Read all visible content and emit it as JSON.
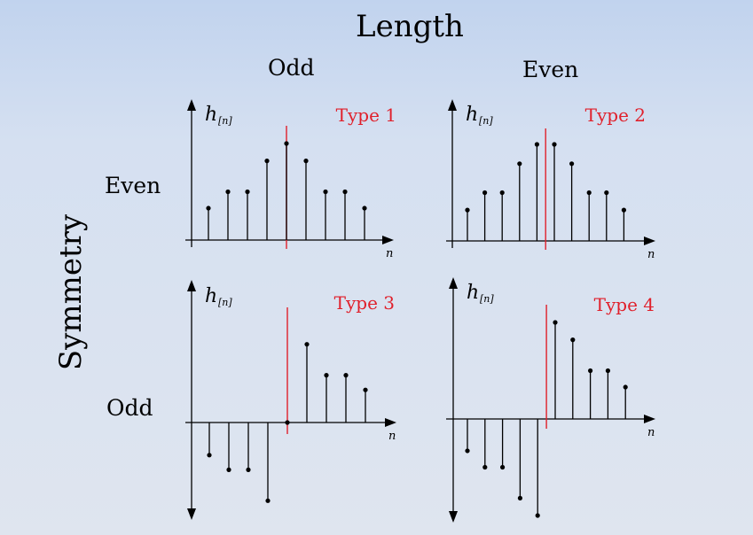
{
  "title": "Length",
  "columns": [
    "Odd",
    "Even"
  ],
  "rows": [
    "Even",
    "Odd"
  ],
  "row_axis_label": "Symmetry",
  "y_label": "h",
  "y_label_sub": "[n]",
  "x_label": "n",
  "colors": {
    "stem": "#000000",
    "symmetry_line": "#e0202b",
    "type_label": "#e0202b"
  },
  "panels": [
    {
      "type_label": "Type 1",
      "length": "odd",
      "symmetry": "even",
      "values": [
        0.33,
        0.5,
        0.5,
        0.82,
        1.0,
        0.82,
        0.5,
        0.5,
        0.33
      ],
      "center_index": 4
    },
    {
      "type_label": "Type 2",
      "length": "even",
      "symmetry": "even",
      "values": [
        0.32,
        0.5,
        0.5,
        0.8,
        1.0,
        1.0,
        0.8,
        0.5,
        0.5,
        0.32
      ],
      "center_index": 4.5
    },
    {
      "type_label": "Type 3",
      "length": "odd",
      "symmetry": "odd",
      "values": [
        -0.4,
        -0.58,
        -0.58,
        -0.96,
        0.0,
        0.96,
        0.58,
        0.58,
        0.4
      ],
      "center_index": 4
    },
    {
      "type_label": "Type 4",
      "length": "even",
      "symmetry": "odd",
      "values": [
        -0.33,
        -0.5,
        -0.5,
        -0.82,
        -1.0,
        1.0,
        0.82,
        0.5,
        0.5,
        0.33
      ],
      "center_index": 4.5
    }
  ]
}
